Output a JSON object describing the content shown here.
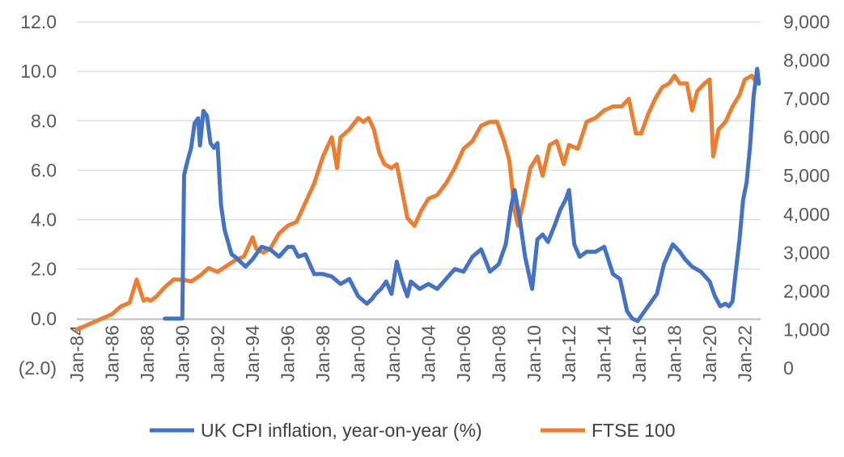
{
  "chart_data": {
    "type": "line",
    "title": "",
    "xlabel": "",
    "x_tick_labels": [
      "Jan-84",
      "Jan-86",
      "Jan-88",
      "Jan-90",
      "Jan-92",
      "Jan-94",
      "Jan-96",
      "Jan-98",
      "Jan-00",
      "Jan-02",
      "Jan-04",
      "Jan-06",
      "Jan-08",
      "Jan-10",
      "Jan-12",
      "Jan-14",
      "Jan-16",
      "Jan-18",
      "Jan-20",
      "Jan-22"
    ],
    "x_range": [
      1984.0,
      2022.9
    ],
    "y_left": {
      "label": "",
      "ylim": [
        -2.0,
        12.0
      ],
      "tick_labels": [
        "(2.0)",
        "0.0",
        "2.0",
        "4.0",
        "6.0",
        "8.0",
        "10.0",
        "12.0"
      ]
    },
    "y_right": {
      "label": "",
      "ylim": [
        0,
        9000
      ],
      "tick_labels": [
        "0",
        "1,000",
        "2,000",
        "3,000",
        "4,000",
        "5,000",
        "6,000",
        "7,000",
        "8,000",
        "9,000"
      ]
    },
    "grid": true,
    "legend_position": "bottom",
    "series": [
      {
        "name": "UK CPI inflation, year-on-year (%)",
        "axis": "left",
        "color": "#4472C4",
        "x": [
          1989.0,
          1989.9,
          1990.0,
          1990.1,
          1990.3,
          1990.5,
          1990.7,
          1990.9,
          1991.0,
          1991.2,
          1991.4,
          1991.6,
          1991.8,
          1992.0,
          1992.2,
          1992.4,
          1992.6,
          1992.8,
          1993.0,
          1993.3,
          1993.6,
          1994.0,
          1994.5,
          1995.0,
          1995.5,
          1996.0,
          1996.3,
          1996.6,
          1997.0,
          1997.5,
          1998.0,
          1998.5,
          1999.0,
          1999.5,
          2000.0,
          2000.5,
          2000.8,
          2001.0,
          2001.3,
          2001.6,
          2001.9,
          2002.2,
          2002.5,
          2002.8,
          2003.0,
          2003.5,
          2004.0,
          2004.5,
          2005.0,
          2005.5,
          2006.0,
          2006.5,
          2007.0,
          2007.5,
          2008.0,
          2008.4,
          2008.7,
          2008.9,
          2009.2,
          2009.5,
          2009.9,
          2010.2,
          2010.5,
          2010.8,
          2011.2,
          2011.5,
          2011.8,
          2012.0,
          2012.3,
          2012.6,
          2013.0,
          2013.5,
          2014.0,
          2014.5,
          2014.9,
          2015.3,
          2015.6,
          2015.9,
          2016.3,
          2016.6,
          2017.0,
          2017.4,
          2017.9,
          2018.3,
          2018.6,
          2019.0,
          2019.5,
          2020.0,
          2020.3,
          2020.6,
          2020.9,
          2021.1,
          2021.3,
          2021.5,
          2021.7,
          2021.9,
          2022.1,
          2022.3,
          2022.5,
          2022.7,
          2022.8
        ],
        "values": [
          0.0,
          0.0,
          0.0,
          5.8,
          6.4,
          6.9,
          7.9,
          8.1,
          7.0,
          8.4,
          8.2,
          7.1,
          6.9,
          7.1,
          4.6,
          3.6,
          3.1,
          2.6,
          2.5,
          2.3,
          2.1,
          2.4,
          2.9,
          2.8,
          2.5,
          2.9,
          2.9,
          2.5,
          2.6,
          1.8,
          1.8,
          1.7,
          1.4,
          1.6,
          0.9,
          0.6,
          0.8,
          1.0,
          1.2,
          1.5,
          1.0,
          2.3,
          1.5,
          0.9,
          1.5,
          1.2,
          1.4,
          1.2,
          1.6,
          2.0,
          1.9,
          2.5,
          2.8,
          1.9,
          2.2,
          3.0,
          4.5,
          5.2,
          4.0,
          2.5,
          1.2,
          3.2,
          3.4,
          3.1,
          3.8,
          4.4,
          4.8,
          5.2,
          3.0,
          2.5,
          2.7,
          2.7,
          2.9,
          1.8,
          1.6,
          0.3,
          0.0,
          -0.1,
          0.3,
          0.6,
          1.0,
          2.2,
          3.0,
          2.7,
          2.4,
          2.1,
          1.9,
          1.5,
          0.9,
          0.5,
          0.6,
          0.5,
          0.7,
          2.0,
          3.2,
          4.8,
          5.5,
          7.0,
          9.0,
          10.1,
          9.5
        ]
      },
      {
        "name": "FTSE 100",
        "axis": "right",
        "color": "#ED7D31",
        "x": [
          1984.0,
          1984.5,
          1985.0,
          1985.5,
          1986.0,
          1986.5,
          1987.0,
          1987.4,
          1987.8,
          1988.0,
          1988.2,
          1988.5,
          1989.0,
          1989.5,
          1990.0,
          1990.5,
          1991.0,
          1991.5,
          1992.0,
          1992.5,
          1993.0,
          1993.5,
          1994.0,
          1994.2,
          1994.6,
          1995.0,
          1995.5,
          1996.0,
          1996.5,
          1997.0,
          1997.5,
          1998.0,
          1998.5,
          1998.8,
          1999.0,
          1999.5,
          2000.0,
          2000.3,
          2000.6,
          2000.9,
          2001.2,
          2001.5,
          2001.9,
          2002.2,
          2002.5,
          2002.8,
          2003.2,
          2003.6,
          2004.0,
          2004.5,
          2005.0,
          2005.5,
          2006.0,
          2006.5,
          2007.0,
          2007.5,
          2007.9,
          2008.3,
          2008.6,
          2008.9,
          2009.1,
          2009.4,
          2009.8,
          2010.2,
          2010.5,
          2010.9,
          2011.3,
          2011.7,
          2012.0,
          2012.5,
          2013.0,
          2013.5,
          2014.0,
          2014.5,
          2015.0,
          2015.4,
          2015.8,
          2016.1,
          2016.5,
          2016.9,
          2017.3,
          2017.7,
          2018.0,
          2018.3,
          2018.7,
          2019.0,
          2019.3,
          2019.7,
          2020.0,
          2020.2,
          2020.5,
          2020.9,
          2021.3,
          2021.7,
          2022.0,
          2022.4,
          2022.7,
          2022.8
        ],
        "values": [
          1000,
          1100,
          1200,
          1300,
          1400,
          1600,
          1700,
          2300,
          1750,
          1800,
          1750,
          1850,
          2100,
          2300,
          2300,
          2250,
          2400,
          2600,
          2500,
          2650,
          2800,
          2900,
          3400,
          3100,
          3000,
          3100,
          3500,
          3700,
          3800,
          4300,
          4800,
          5500,
          6000,
          5200,
          6000,
          6200,
          6500,
          6400,
          6500,
          6200,
          5600,
          5300,
          5200,
          5300,
          4600,
          3900,
          3700,
          4100,
          4400,
          4500,
          4800,
          5200,
          5700,
          5900,
          6300,
          6400,
          6400,
          5900,
          5400,
          4100,
          3700,
          4300,
          5200,
          5500,
          5000,
          5800,
          5900,
          5300,
          5800,
          5700,
          6400,
          6500,
          6700,
          6800,
          6800,
          7000,
          6100,
          6100,
          6600,
          7000,
          7300,
          7400,
          7600,
          7400,
          7400,
          6700,
          7200,
          7400,
          7500,
          5500,
          6200,
          6400,
          6800,
          7100,
          7500,
          7600,
          7400,
          7400
        ]
      }
    ]
  }
}
